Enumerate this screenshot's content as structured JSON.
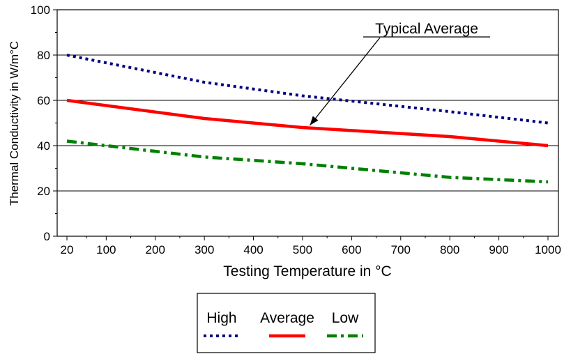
{
  "chart_data": {
    "type": "line",
    "title": "",
    "xlabel": "Testing Temperature in °C",
    "ylabel": "Thermal Conductivity in W/m°C",
    "x_ticks": [
      20,
      100,
      200,
      300,
      400,
      500,
      600,
      700,
      800,
      900,
      1000
    ],
    "y_ticks": [
      0,
      20,
      40,
      60,
      80,
      100
    ],
    "xlim": [
      20,
      1000
    ],
    "ylim": [
      0,
      100
    ],
    "grid": "horizontal",
    "legend_position": "bottom",
    "series": [
      {
        "name": "High",
        "style": "dotted",
        "color": "#000080",
        "x": [
          20,
          300,
          500,
          800,
          1000
        ],
        "y": [
          80,
          68,
          62,
          55,
          50
        ]
      },
      {
        "name": "Average",
        "style": "solid",
        "color": "#ff0000",
        "x": [
          20,
          300,
          500,
          800,
          1000
        ],
        "y": [
          60,
          52,
          48,
          44,
          40
        ]
      },
      {
        "name": "Low",
        "style": "dash-dot",
        "color": "#008000",
        "x": [
          20,
          300,
          500,
          800,
          1000
        ],
        "y": [
          42,
          35,
          32,
          26,
          24
        ]
      }
    ],
    "annotations": [
      {
        "text": "Typical Average",
        "points_to": {
          "x": 515,
          "y": 49
        }
      }
    ]
  }
}
